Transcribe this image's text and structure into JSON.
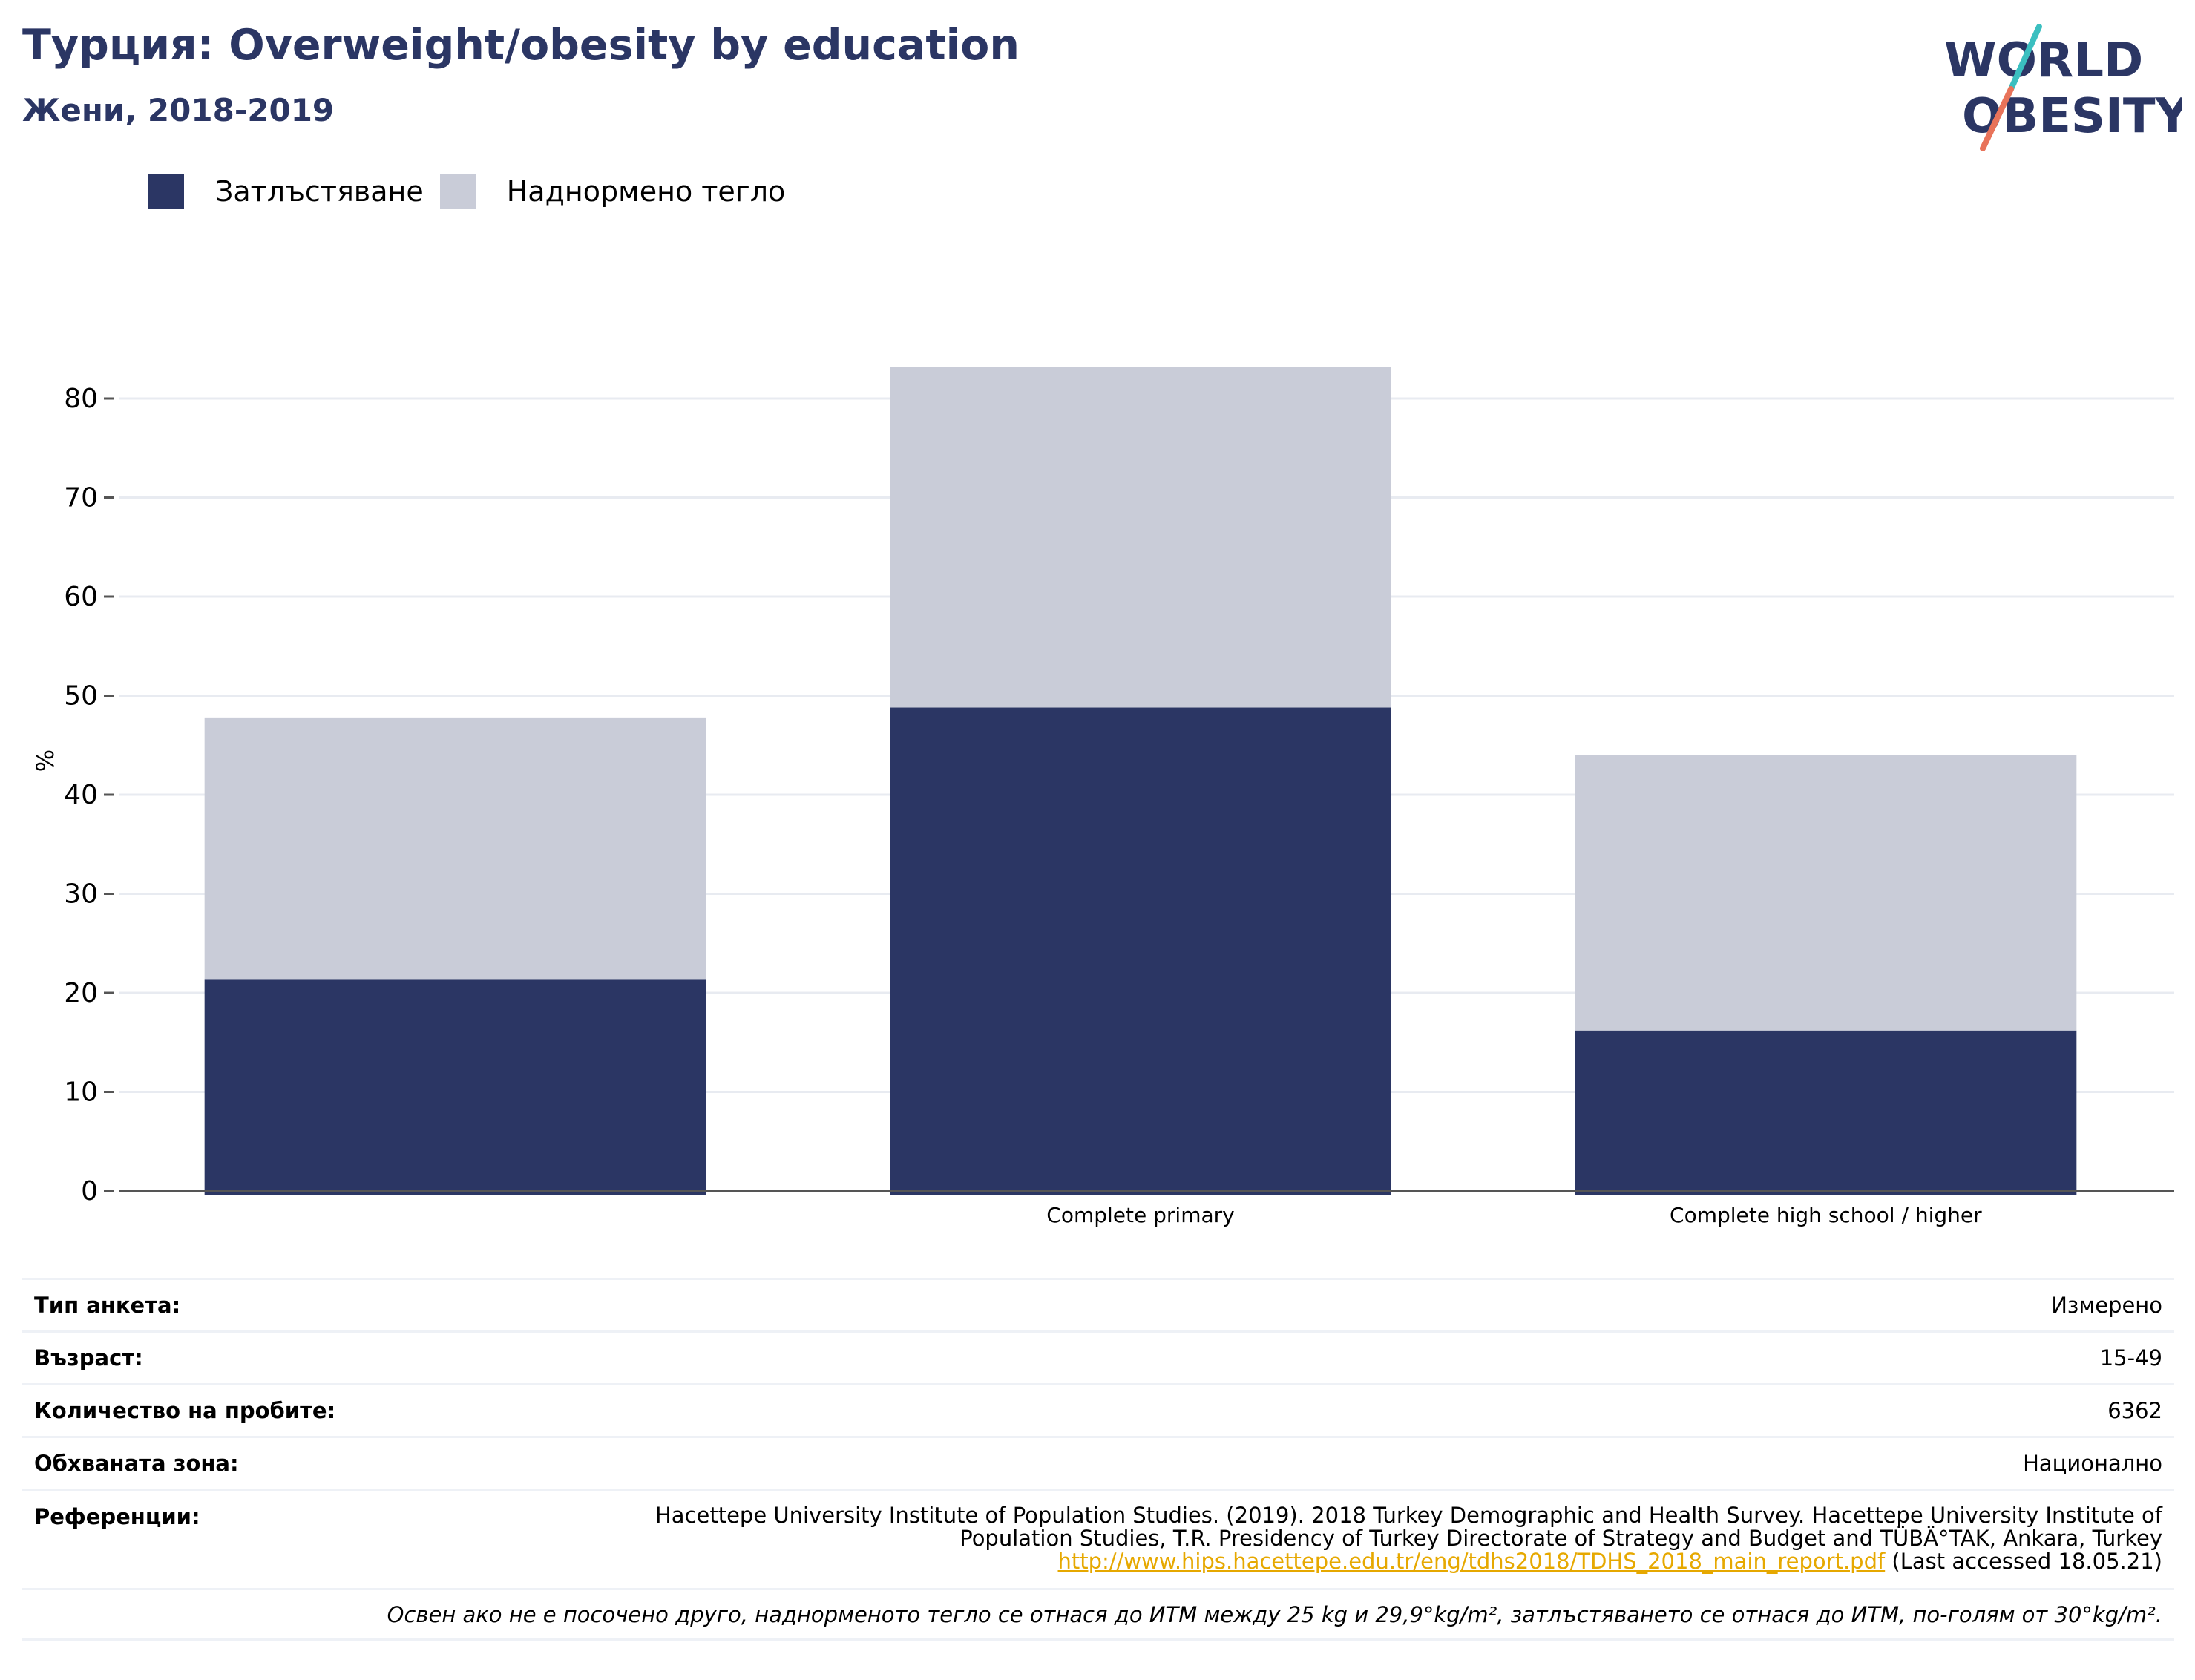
{
  "header": {
    "title": "Турция: Overweight/obesity by education",
    "subtitle": "Жени, 2018-2019"
  },
  "logo": {
    "line1": "WORLD",
    "line2": "OBESITY",
    "colors": {
      "text": "#2b3664",
      "slash_top": "#3bbfc0",
      "slash_bottom": "#e8735a"
    }
  },
  "legend": [
    {
      "label": "Затлъстяване",
      "color": "#2b3664"
    },
    {
      "label": "Наднормено тегло",
      "color": "#c9ccd8"
    }
  ],
  "chart_data": {
    "type": "bar",
    "stacked": true,
    "categories": [
      "",
      "Complete primary",
      "Complete high school / higher"
    ],
    "series": [
      {
        "name": "Затлъстяване",
        "values": [
          21.4,
          48.8,
          16.2
        ],
        "color": "#2b3664"
      },
      {
        "name": "Наднормено тегло",
        "values": [
          26.4,
          34.4,
          27.8
        ],
        "color": "#c9ccd8"
      }
    ],
    "ylabel": "%",
    "ylim": [
      0,
      85
    ],
    "yticks": [
      0,
      10,
      20,
      30,
      40,
      50,
      60,
      70,
      80
    ],
    "grid": true
  },
  "info": {
    "survey_type": {
      "label": "Тип анкета:",
      "value": "Измерено"
    },
    "age": {
      "label": "Възраст:",
      "value": "15-49"
    },
    "sample_size": {
      "label": "Количество на пробите:",
      "value": "6362"
    },
    "area": {
      "label": "Обхваната зона:",
      "value": "Национално"
    },
    "references": {
      "label": "Референции:",
      "line1": "Hacettepe University Institute of Population Studies. (2019). 2018 Turkey Demographic and Health Survey. Hacettepe University Institute of",
      "line2": "Population Studies, T.R. Presidency of Turkey Directorate of Strategy and Budget and TÜBÄ°TAK, Ankara, Turkey",
      "link": "http://www.hips.hacettepe.edu.tr/eng/tdhs2018/TDHS_2018_main_report.pdf",
      "accessed": " (Last accessed 18.05.21)"
    },
    "note": "Освен ако не е посочено друго, наднорменото тегло се отнася до ИТМ между 25 kg и 29,9°kg/m², затлъстяването се отнася до ИТМ, по-голям от 30°kg/m²."
  }
}
